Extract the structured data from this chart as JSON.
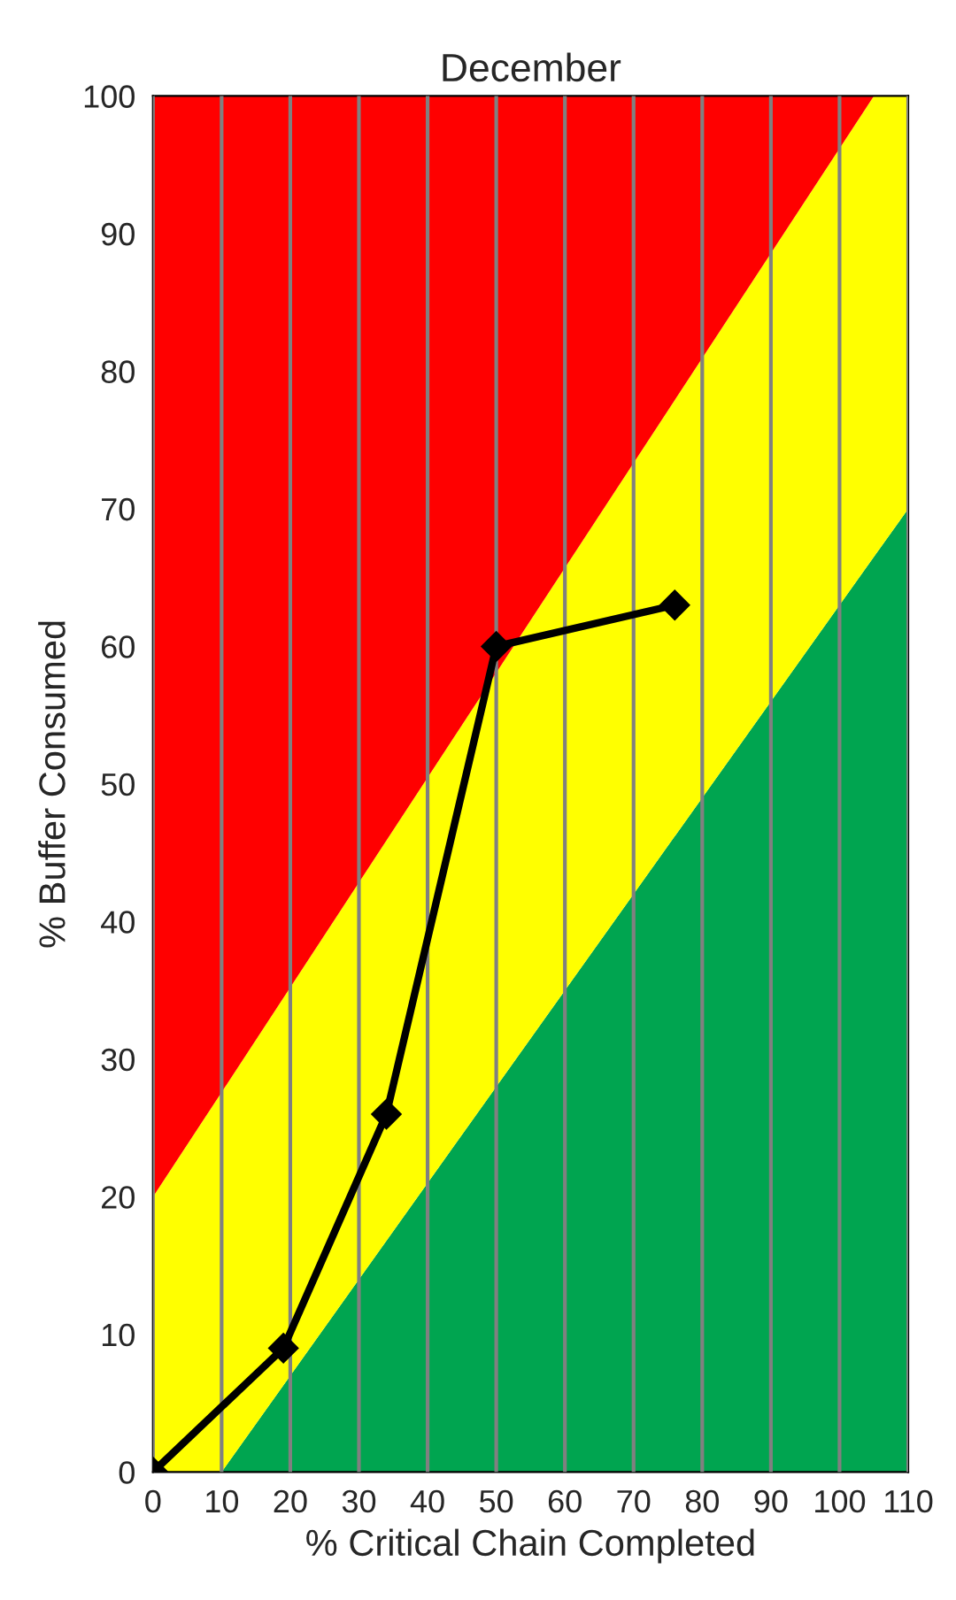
{
  "chart_data": {
    "type": "line",
    "title": "December",
    "xlabel": "% Critical Chain Completed",
    "ylabel": "% Buffer Consumed",
    "xlim": [
      0,
      110
    ],
    "xticks": [
      0,
      10,
      20,
      30,
      40,
      50,
      60,
      70,
      80,
      90,
      100,
      110
    ],
    "ylim": [
      0,
      100
    ],
    "yticks": [
      0,
      10,
      20,
      30,
      40,
      50,
      60,
      70,
      80,
      90,
      100
    ],
    "grid": "x",
    "stacked": true,
    "series": [
      {
        "type": "area",
        "color": "#00a550",
        "x": [
          0,
          10,
          105,
          110
        ],
        "values": [
          0,
          0,
          66.5,
          70
        ]
      },
      {
        "type": "area",
        "color": "#ffff00",
        "x": [
          0,
          10,
          105,
          110
        ],
        "values": [
          20,
          27.6,
          33.5,
          30
        ]
      },
      {
        "type": "area",
        "color": "#ff0000",
        "x": [
          0,
          10,
          105,
          110
        ],
        "values": [
          80,
          72.4,
          0,
          0
        ]
      },
      {
        "color": "#000000",
        "marker": "diamond",
        "line_style": "solid",
        "x": [
          0,
          19,
          34,
          50,
          76
        ],
        "values": [
          0,
          9,
          26,
          60,
          63
        ]
      }
    ]
  }
}
